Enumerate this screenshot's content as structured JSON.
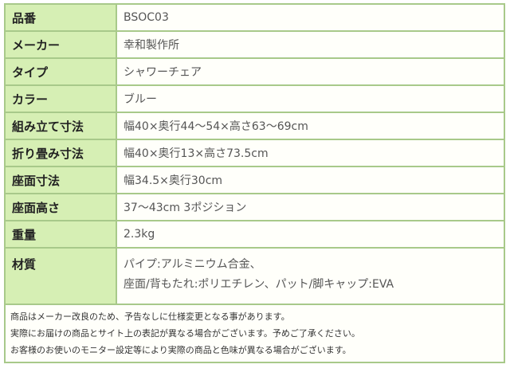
{
  "specs": [
    {
      "label": "品番",
      "value": "BSOC03"
    },
    {
      "label": "メーカー",
      "value": "幸和製作所"
    },
    {
      "label": "タイプ",
      "value": "シャワーチェア"
    },
    {
      "label": "カラー",
      "value": "ブルー"
    },
    {
      "label": "組み立て寸法",
      "value": "幅40×奥行44～54×高さ63～69cm"
    },
    {
      "label": "折り畳み寸法",
      "value": "幅40×奥行13×高さ73.5cm"
    },
    {
      "label": "座面寸法",
      "value": "幅34.5×奥行30cm"
    },
    {
      "label": "座面高さ",
      "value": "37～43cm 3ポジション"
    },
    {
      "label": "重量",
      "value": "2.3kg"
    }
  ],
  "material": {
    "label": "材質",
    "lines": [
      "パイプ:アルミニウム合金、",
      "座面/背もたれ:ポリエチレン、パット/脚キャップ:EVA"
    ]
  },
  "notes": [
    "商品はメーカー改良のため、予告なしに仕様変更となる事があります。",
    "実際にお届けの商品とサイト上の表記が異なる場合がございます。予めご了承ください。",
    "お客様のお使いのモニター設定等により実際の商品と色味が異なる場合がございます。"
  ]
}
